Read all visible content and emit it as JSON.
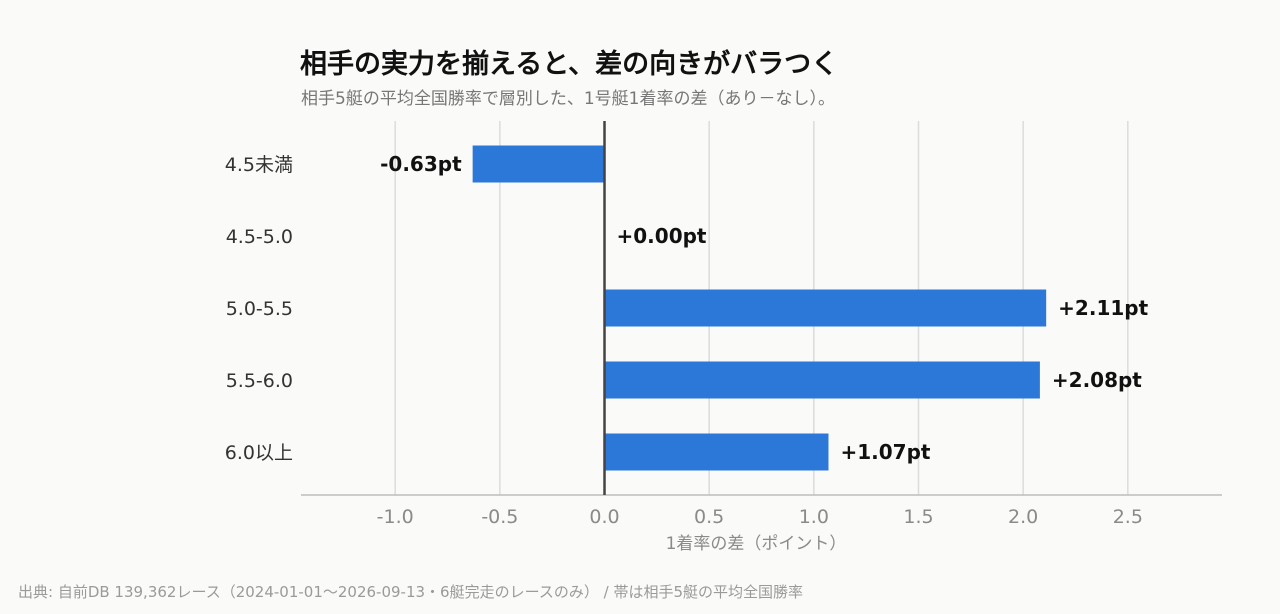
{
  "title": "相手の実力を揃えると、差の向きがバラつく",
  "subtitle": "相手5艇の平均全国勝率で層別した、1号艇1着率の差（あり－なし）。",
  "source": "出典: 自前DB 139,362レース（2024-01-01〜2026-09-13・6艇完走のレースのみ） / 帯は相手5艇の平均全国勝率",
  "chart_data": {
    "type": "bar",
    "orientation": "horizontal",
    "categories": [
      "4.5未満",
      "4.5-5.0",
      "5.0-5.5",
      "5.5-6.0",
      "6.0以上"
    ],
    "values": [
      -0.63,
      0.0,
      2.11,
      2.08,
      1.07
    ],
    "value_labels": [
      "-0.63pt",
      "+0.00pt",
      "+2.11pt",
      "+2.08pt",
      "+1.07pt"
    ],
    "xlabel": "1着率の差（ポイント）",
    "xlim": [
      -1.45,
      2.95
    ],
    "xticks": [
      -1.0,
      -0.5,
      0.0,
      0.5,
      1.0,
      1.5,
      2.0,
      2.5
    ],
    "xtick_labels": [
      "-1.0",
      "-0.5",
      "0.0",
      "0.5",
      "1.0",
      "1.5",
      "2.0",
      "2.5"
    ],
    "grid": true,
    "bar_color": "#2b78d8",
    "zero_line_color": "#444444",
    "grid_color": "#dcdcdc"
  }
}
